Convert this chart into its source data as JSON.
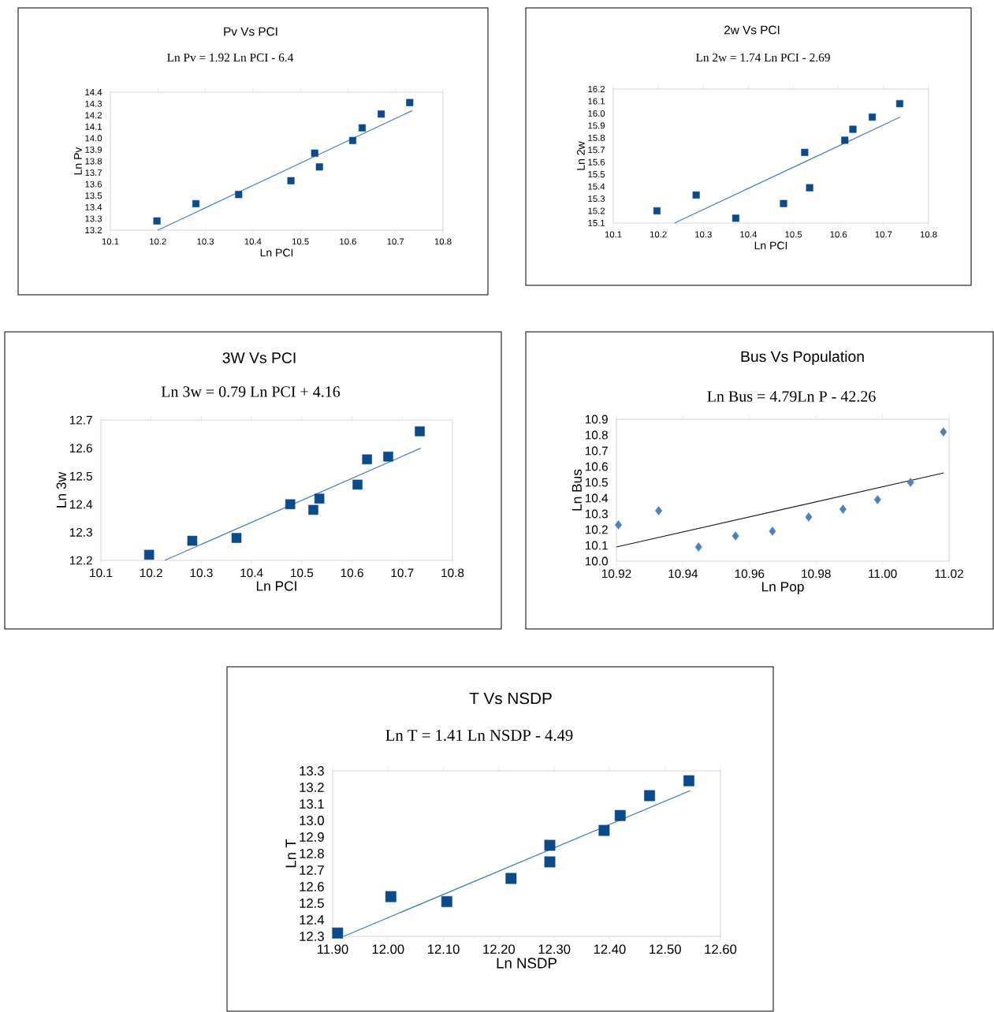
{
  "chart_data": [
    {
      "type": "scatter",
      "title": "Pv Vs PCI",
      "subtitle": "Ln Pv = 1.92 Ln PCI - 6.4",
      "xlabel": "Ln PCI",
      "ylabel": "Ln Pv",
      "marker": "square",
      "xlim": [
        10.1,
        10.8
      ],
      "xticks": [
        10.1,
        10.2,
        10.3,
        10.4,
        10.5,
        10.6,
        10.7,
        10.8
      ],
      "ylim": [
        13.2,
        14.4
      ],
      "yticks": [
        13.2,
        13.3,
        13.4,
        13.5,
        13.6,
        13.7,
        13.8,
        13.9,
        {
          "value": 14.0,
          "label": "14.0"
        },
        14.1,
        14.2,
        14.3,
        14.4
      ],
      "series": [
        {
          "type": "scatter",
          "color": "#0b4a8b",
          "x": [
            10.198,
            10.28,
            10.37,
            10.48,
            10.53,
            10.54,
            10.61,
            10.63,
            10.67,
            10.73
          ],
          "values": [
            13.28,
            13.43,
            13.51,
            13.63,
            13.87,
            13.75,
            13.98,
            14.09,
            14.21,
            14.31
          ]
        },
        {
          "type": "line",
          "color": "#4a7ebb",
          "marker": "none",
          "x": [
            10.2,
            10.735
          ],
          "values": [
            13.2,
            14.24
          ]
        }
      ]
    },
    {
      "type": "scatter",
      "title": "2w Vs PCI",
      "subtitle": "Ln 2w = 1.74 Ln PCI - 2.69",
      "xlabel": "Ln PCI",
      "ylabel": "Ln 2w",
      "marker": "square",
      "xlim": [
        10.1,
        10.8
      ],
      "xticks": [
        10.1,
        10.2,
        10.3,
        10.4,
        10.5,
        10.6,
        10.7,
        10.8
      ],
      "ylim": [
        15.1,
        16.2
      ],
      "yticks": [
        15.1,
        15.2,
        15.3,
        15.4,
        15.5,
        15.6,
        15.7,
        15.8,
        15.9,
        {
          "value": 16.0,
          "label": "16.0"
        },
        16.1,
        16.2
      ],
      "series": [
        {
          "type": "scatter",
          "color": "#0b4a8b",
          "x": [
            10.197,
            10.284,
            10.372,
            10.478,
            10.525,
            10.536,
            10.614,
            10.632,
            10.675,
            10.736
          ],
          "values": [
            15.2,
            15.33,
            15.14,
            15.26,
            15.68,
            15.39,
            15.78,
            15.87,
            15.97,
            16.08
          ]
        },
        {
          "type": "line",
          "color": "#4a7ebb",
          "marker": "none",
          "x": [
            10.236,
            10.737
          ],
          "values": [
            15.1,
            15.97
          ]
        }
      ]
    },
    {
      "type": "scatter",
      "title": "3W Vs PCI",
      "subtitle": "Ln 3w = 0.79 Ln PCI + 4.16",
      "xlabel": "Ln PCI",
      "ylabel": "Ln 3w",
      "marker": "square",
      "xlim": [
        10.1,
        10.8
      ],
      "xticks": [
        10.1,
        10.2,
        10.3,
        10.4,
        10.5,
        10.6,
        10.7,
        10.8
      ],
      "ylim": [
        12.2,
        12.7
      ],
      "yticks": [
        12.2,
        12.3,
        12.4,
        12.5,
        12.6,
        12.7
      ],
      "series": [
        {
          "type": "scatter",
          "color": "#0b4a8b",
          "x": [
            10.196,
            10.282,
            10.37,
            10.477,
            10.523,
            10.535,
            10.611,
            10.63,
            10.672,
            10.735
          ],
          "values": [
            12.22,
            12.27,
            12.28,
            12.4,
            12.38,
            12.42,
            12.47,
            12.56,
            12.57,
            12.66
          ]
        },
        {
          "type": "line",
          "color": "#4a7ebb",
          "marker": "none",
          "x": [
            10.227,
            10.737
          ],
          "values": [
            12.2,
            12.6
          ]
        }
      ]
    },
    {
      "type": "scatter",
      "title": "Bus Vs Population",
      "subtitle": "Ln Bus = 4.79Ln P - 42.26",
      "xlabel": "Ln Pop",
      "ylabel": "Ln Bus",
      "marker": "diamond",
      "xlim": [
        10.92,
        11.02
      ],
      "xticks": [
        10.92,
        10.94,
        10.96,
        10.98,
        {
          "value": 11.0,
          "label": "11.00"
        },
        11.02
      ],
      "ylim": [
        10.0,
        10.9
      ],
      "yticks": [
        {
          "value": 10.0,
          "label": "10.0"
        },
        10.1,
        10.2,
        10.3,
        10.4,
        10.5,
        10.6,
        10.7,
        10.8,
        10.9
      ],
      "series": [
        {
          "type": "scatter",
          "color": "#4f81bd",
          "x": [
            10.9206,
            10.9327,
            10.9447,
            10.9558,
            10.9669,
            10.9778,
            10.9881,
            10.9985,
            11.0084,
            11.0183
          ],
          "values": [
            10.23,
            10.32,
            10.09,
            10.16,
            10.19,
            10.28,
            10.33,
            10.39,
            10.5,
            10.82
          ]
        },
        {
          "type": "line",
          "color": "#1a1a1a",
          "marker": "none",
          "x": [
            10.92,
            11.0184
          ],
          "values": [
            10.09,
            10.56
          ]
        }
      ]
    },
    {
      "type": "scatter",
      "title": "T Vs NSDP",
      "subtitle": "Ln T = 1.41 Ln NSDP - 4.49",
      "xlabel": "Ln NSDP",
      "ylabel": "Ln T",
      "marker": "square",
      "xlim": [
        11.9,
        12.6
      ],
      "xticks": [
        {
          "value": 11.9,
          "label": "11.90"
        },
        {
          "value": 12.0,
          "label": "12.00"
        },
        {
          "value": 12.1,
          "label": "12.10"
        },
        {
          "value": 12.2,
          "label": "12.20"
        },
        {
          "value": 12.3,
          "label": "12.30"
        },
        {
          "value": 12.4,
          "label": "12.40"
        },
        {
          "value": 12.5,
          "label": "12.50"
        },
        {
          "value": 12.6,
          "label": "12.60"
        }
      ],
      "ylim": [
        12.3,
        13.3
      ],
      "yticks": [
        12.3,
        12.4,
        12.5,
        12.6,
        12.7,
        12.8,
        12.9,
        {
          "value": 13.0,
          "label": "13.0"
        },
        13.1,
        13.2,
        13.3
      ],
      "series": [
        {
          "type": "scatter",
          "color": "#0b4a8b",
          "x": [
            11.909,
            12.005,
            12.106,
            12.222,
            12.292,
            12.292,
            12.39,
            12.419,
            12.472,
            12.543
          ],
          "values": [
            12.32,
            12.54,
            12.51,
            12.65,
            12.85,
            12.75,
            12.94,
            13.03,
            13.15,
            13.24
          ]
        },
        {
          "type": "line",
          "color": "#3d7ab8",
          "marker": "none",
          "x": [
            11.92,
            12.545
          ],
          "values": [
            12.3,
            13.18
          ]
        }
      ]
    }
  ]
}
